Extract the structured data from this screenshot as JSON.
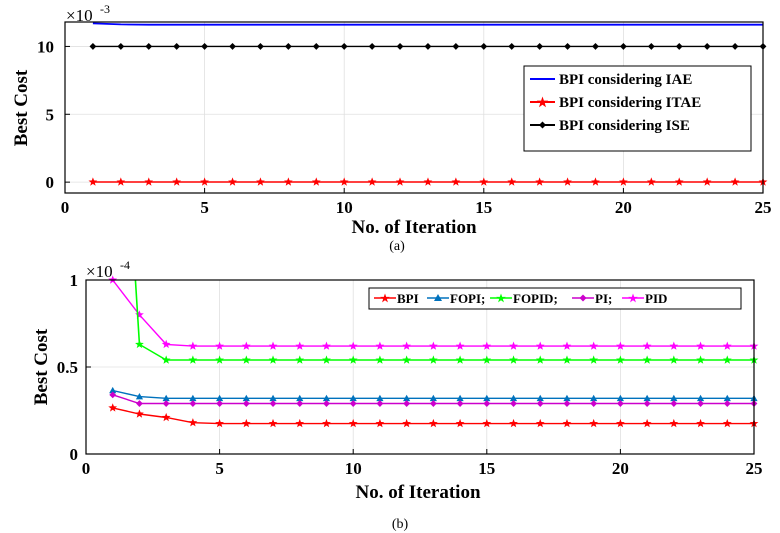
{
  "chart_data": [
    {
      "id": "a",
      "type": "line",
      "caption": "(a)",
      "xlabel": "No. of Iteration",
      "ylabel": "Best Cost",
      "multiplier_base": "×10",
      "multiplier_exp": "-3",
      "xlim": [
        0,
        25
      ],
      "ylim": [
        -0.0008,
        0.0118
      ],
      "xticks": [
        0,
        5,
        10,
        15,
        20,
        25
      ],
      "yticks": [
        0,
        0.005,
        0.01
      ],
      "ytick_labels": [
        "0",
        "5",
        "10"
      ],
      "legend_position": "right",
      "x": [
        1,
        2,
        3,
        4,
        5,
        6,
        7,
        8,
        9,
        10,
        11,
        12,
        13,
        14,
        15,
        16,
        17,
        18,
        19,
        20,
        21,
        22,
        23,
        24,
        25
      ],
      "series": [
        {
          "name": "BPI considering IAE",
          "color": "#0000ff",
          "marker": "none",
          "values": [
            0.0117,
            0.01162,
            0.0116,
            0.0116,
            0.0116,
            0.0116,
            0.0116,
            0.0116,
            0.0116,
            0.0116,
            0.0116,
            0.0116,
            0.0116,
            0.0116,
            0.0116,
            0.0116,
            0.0116,
            0.0116,
            0.0116,
            0.0116,
            0.0116,
            0.0116,
            0.0116,
            0.0116,
            0.0116
          ]
        },
        {
          "name": "BPI considering ITAE",
          "color": "#ff0000",
          "marker": "star",
          "values": [
            1e-05,
            1e-05,
            1e-05,
            1e-05,
            1e-05,
            1e-05,
            1e-05,
            1e-05,
            1e-05,
            1e-05,
            1e-05,
            1e-05,
            1e-05,
            1e-05,
            1e-05,
            1e-05,
            1e-05,
            1e-05,
            1e-05,
            1e-05,
            1e-05,
            1e-05,
            1e-05,
            1e-05,
            1e-05
          ]
        },
        {
          "name": "BPI considering ISE",
          "color": "#000000",
          "marker": "diamond",
          "values": [
            0.01,
            0.01,
            0.01,
            0.01,
            0.01,
            0.01,
            0.01,
            0.01,
            0.01,
            0.01,
            0.01,
            0.01,
            0.01,
            0.01,
            0.01,
            0.01,
            0.01,
            0.01,
            0.01,
            0.01,
            0.01,
            0.01,
            0.01,
            0.01,
            0.01
          ]
        }
      ]
    },
    {
      "id": "b",
      "type": "line",
      "caption": "(b)",
      "xlabel": "No. of Iteration",
      "ylabel": "Best Cost",
      "multiplier_base": "×10",
      "multiplier_exp": "-4",
      "xlim": [
        0,
        25
      ],
      "ylim": [
        0,
        0.0001
      ],
      "xticks": [
        0,
        5,
        10,
        15,
        20,
        25
      ],
      "yticks": [
        0,
        5e-05,
        0.0001
      ],
      "ytick_labels": [
        "0",
        "0.5",
        "1"
      ],
      "legend_position": "top-right",
      "legend_text": [
        "BPI",
        "FOPI;",
        "FOPID;",
        "PI;",
        "PID"
      ],
      "x": [
        1,
        2,
        3,
        4,
        5,
        6,
        7,
        8,
        9,
        10,
        11,
        12,
        13,
        14,
        15,
        16,
        17,
        18,
        19,
        20,
        21,
        22,
        23,
        24,
        25
      ],
      "series": [
        {
          "name": "BPI",
          "color": "#ff0000",
          "marker": "star",
          "values": [
            2.65e-05,
            2.3e-05,
            2.1e-05,
            1.8e-05,
            1.75e-05,
            1.75e-05,
            1.75e-05,
            1.75e-05,
            1.75e-05,
            1.75e-05,
            1.75e-05,
            1.75e-05,
            1.75e-05,
            1.75e-05,
            1.75e-05,
            1.75e-05,
            1.75e-05,
            1.75e-05,
            1.75e-05,
            1.75e-05,
            1.75e-05,
            1.75e-05,
            1.75e-05,
            1.75e-05,
            1.75e-05
          ]
        },
        {
          "name": "FOPI",
          "color": "#0072bd",
          "marker": "triangle",
          "values": [
            3.65e-05,
            3.3e-05,
            3.2e-05,
            3.2e-05,
            3.2e-05,
            3.2e-05,
            3.2e-05,
            3.2e-05,
            3.2e-05,
            3.2e-05,
            3.2e-05,
            3.2e-05,
            3.2e-05,
            3.2e-05,
            3.2e-05,
            3.2e-05,
            3.2e-05,
            3.2e-05,
            3.2e-05,
            3.2e-05,
            3.2e-05,
            3.2e-05,
            3.2e-05,
            3.2e-05,
            3.2e-05
          ]
        },
        {
          "name": "FOPID",
          "color": "#00ff00",
          "marker": "star",
          "values": [
            null,
            6.3e-05,
            5.4e-05,
            5.4e-05,
            5.4e-05,
            5.4e-05,
            5.4e-05,
            5.4e-05,
            5.4e-05,
            5.4e-05,
            5.4e-05,
            5.4e-05,
            5.4e-05,
            5.4e-05,
            5.4e-05,
            5.4e-05,
            5.4e-05,
            5.4e-05,
            5.4e-05,
            5.4e-05,
            5.4e-05,
            5.4e-05,
            5.4e-05,
            5.4e-05,
            5.4e-05
          ]
        },
        {
          "name": "PI",
          "color": "#cc00cc",
          "marker": "diamond",
          "values": [
            3.4e-05,
            2.9e-05,
            2.9e-05,
            2.9e-05,
            2.9e-05,
            2.9e-05,
            2.9e-05,
            2.9e-05,
            2.9e-05,
            2.9e-05,
            2.9e-05,
            2.9e-05,
            2.9e-05,
            2.9e-05,
            2.9e-05,
            2.9e-05,
            2.9e-05,
            2.9e-05,
            2.9e-05,
            2.9e-05,
            2.9e-05,
            2.9e-05,
            2.9e-05,
            2.9e-05,
            2.9e-05
          ]
        },
        {
          "name": "PID",
          "color": "#ff00ff",
          "marker": "star",
          "values": [
            0.0001,
            8e-05,
            6.3e-05,
            6.2e-05,
            6.2e-05,
            6.2e-05,
            6.2e-05,
            6.2e-05,
            6.2e-05,
            6.2e-05,
            6.2e-05,
            6.2e-05,
            6.2e-05,
            6.2e-05,
            6.2e-05,
            6.2e-05,
            6.2e-05,
            6.2e-05,
            6.2e-05,
            6.2e-05,
            6.2e-05,
            6.2e-05,
            6.2e-05,
            6.2e-05,
            6.2e-05
          ]
        }
      ],
      "fopid_spike": {
        "x": [
          1.85,
          2
        ],
        "y": [
          0.0001,
          6.3e-05
        ]
      }
    }
  ]
}
